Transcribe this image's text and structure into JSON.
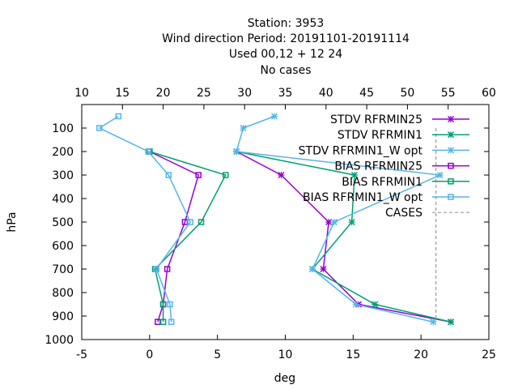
{
  "chart_data": {
    "type": "line",
    "title_lines": [
      "Station:     3953",
      "Wind direction  Period: 20191101-20191114",
      "Used  00,12 + 12 24",
      "No cases"
    ],
    "xlabel": "deg",
    "ylabel": "hPa",
    "xlim": [
      -5,
      25
    ],
    "x2lim": [
      10,
      60
    ],
    "ylim": [
      1000,
      0
    ],
    "x_ticks": [
      "-5",
      "0",
      "5",
      "10",
      "15",
      "20",
      "25"
    ],
    "x2_ticks": [
      "10",
      "15",
      "20",
      "25",
      "30",
      "35",
      "40",
      "45",
      "50",
      "55",
      "60"
    ],
    "y_ticks": [
      "100",
      "200",
      "300",
      "400",
      "500",
      "600",
      "700",
      "800",
      "900",
      "1000"
    ],
    "grid": false,
    "legend_position": "top-right",
    "series": [
      {
        "name": "STDV RFRMIN25",
        "color": "#9400d3",
        "marker": "x",
        "axis": "x1",
        "points": [
          [
            6.4,
            200
          ],
          [
            9.7,
            300
          ],
          [
            13.2,
            500
          ],
          [
            12.8,
            700
          ],
          [
            15.4,
            850
          ],
          [
            22.2,
            925
          ]
        ]
      },
      {
        "name": "STDV RFRMIN1",
        "color": "#009e73",
        "marker": "x",
        "axis": "x1",
        "points": [
          [
            6.4,
            200
          ],
          [
            15.1,
            300
          ],
          [
            14.9,
            500
          ],
          [
            12.0,
            700
          ],
          [
            16.6,
            850
          ],
          [
            22.2,
            925
          ]
        ]
      },
      {
        "name": "STDV RFRMIN1_W opt",
        "color": "#56b4e9",
        "marker": "x",
        "axis": "x1",
        "points": [
          [
            9.2,
            50
          ],
          [
            6.9,
            100
          ],
          [
            6.4,
            200
          ],
          [
            21.4,
            300
          ],
          [
            13.6,
            500
          ],
          [
            12.0,
            700
          ],
          [
            15.2,
            850
          ],
          [
            20.9,
            925
          ]
        ]
      },
      {
        "name": "BIAS RFRMIN25",
        "color": "#9400d3",
        "marker": "square",
        "axis": "x1",
        "points": [
          [
            0.0,
            200
          ],
          [
            3.6,
            300
          ],
          [
            2.6,
            500
          ],
          [
            1.3,
            700
          ],
          [
            1.0,
            850
          ],
          [
            0.6,
            925
          ]
        ]
      },
      {
        "name": "BIAS RFRMIN1",
        "color": "#009e73",
        "marker": "square",
        "axis": "x1",
        "points": [
          [
            0.0,
            200
          ],
          [
            5.6,
            300
          ],
          [
            3.8,
            500
          ],
          [
            0.4,
            700
          ],
          [
            1.0,
            850
          ],
          [
            1.0,
            925
          ]
        ]
      },
      {
        "name": "BIAS RFRMIN1_W opt",
        "color": "#56b4e9",
        "marker": "square",
        "axis": "x1",
        "points": [
          [
            -2.3,
            50
          ],
          [
            -3.7,
            100
          ],
          [
            -0.1,
            200
          ],
          [
            1.4,
            300
          ],
          [
            3.0,
            500
          ],
          [
            0.5,
            700
          ],
          [
            1.5,
            850
          ],
          [
            1.6,
            925
          ]
        ]
      },
      {
        "name": "CASES",
        "color": "#999999",
        "marker": "none",
        "dashed": true,
        "axis": "x2",
        "points": [
          [
            53.5,
            100
          ],
          [
            53.5,
            925
          ]
        ]
      }
    ]
  }
}
